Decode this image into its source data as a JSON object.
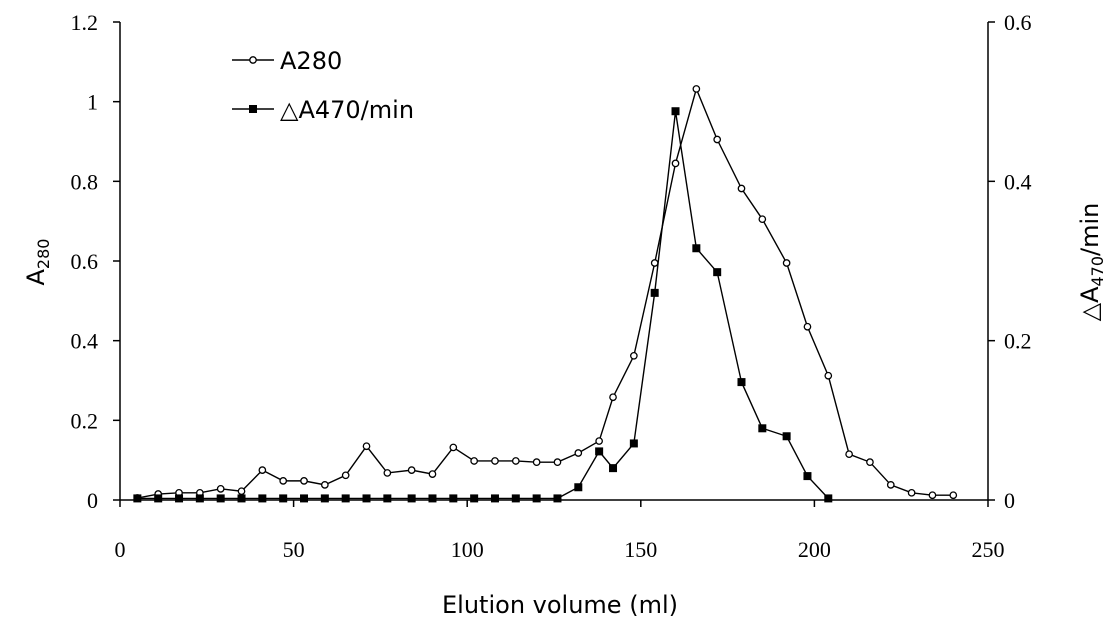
{
  "chart_data": {
    "type": "line",
    "xlabel": "Elution volume (ml)",
    "ylabel_left": {
      "main": "A",
      "sub": "280"
    },
    "ylabel_right": {
      "prefix": "△A",
      "sub": "470",
      "suffix": "/min"
    },
    "xlim": [
      0,
      250
    ],
    "ylim_left": [
      0,
      1.2
    ],
    "ylim_right": [
      0,
      0.6
    ],
    "x_ticks": [
      "0",
      "50",
      "100",
      "150",
      "200",
      "250"
    ],
    "y_left_ticks": [
      "0",
      "0.2",
      "0.4",
      "0.6",
      "0.8",
      "1",
      "1.2"
    ],
    "y_right_ticks": [
      "0",
      "0.2",
      "0.4",
      "0.6"
    ],
    "grid": false,
    "legend_position": "top-left",
    "series": [
      {
        "name": "A280",
        "axis": "left",
        "marker": "open-circle",
        "x": [
          5,
          11,
          17,
          23,
          29,
          35,
          41,
          47,
          53,
          59,
          65,
          71,
          77,
          84,
          90,
          96,
          102,
          108,
          114,
          120,
          126,
          132,
          138,
          142,
          148,
          154,
          160,
          166,
          172,
          179,
          185,
          192,
          198,
          204,
          210,
          216,
          222,
          228,
          234,
          240
        ],
        "y": [
          0.005,
          0.015,
          0.018,
          0.018,
          0.028,
          0.022,
          0.075,
          0.048,
          0.048,
          0.038,
          0.062,
          0.135,
          0.068,
          0.075,
          0.065,
          0.132,
          0.098,
          0.098,
          0.098,
          0.095,
          0.095,
          0.118,
          0.148,
          0.258,
          0.362,
          0.595,
          0.845,
          1.032,
          0.905,
          0.782,
          0.705,
          0.595,
          0.435,
          0.312,
          0.115,
          0.095,
          0.038,
          0.018,
          0.012,
          0.012
        ]
      },
      {
        "name": "△A470/min",
        "axis": "right",
        "marker": "filled-square",
        "x": [
          5,
          11,
          17,
          23,
          29,
          35,
          41,
          47,
          53,
          59,
          65,
          71,
          77,
          84,
          90,
          96,
          102,
          108,
          114,
          120,
          126,
          132,
          138,
          142,
          148,
          154,
          160,
          166,
          172,
          179,
          185,
          192,
          198,
          204
        ],
        "y": [
          0.002,
          0.002,
          0.002,
          0.002,
          0.002,
          0.002,
          0.002,
          0.002,
          0.002,
          0.002,
          0.002,
          0.002,
          0.002,
          0.002,
          0.002,
          0.002,
          0.002,
          0.002,
          0.002,
          0.002,
          0.002,
          0.016,
          0.061,
          0.04,
          0.071,
          0.26,
          0.488,
          0.316,
          0.286,
          0.148,
          0.09,
          0.08,
          0.03,
          0.002
        ]
      }
    ]
  }
}
